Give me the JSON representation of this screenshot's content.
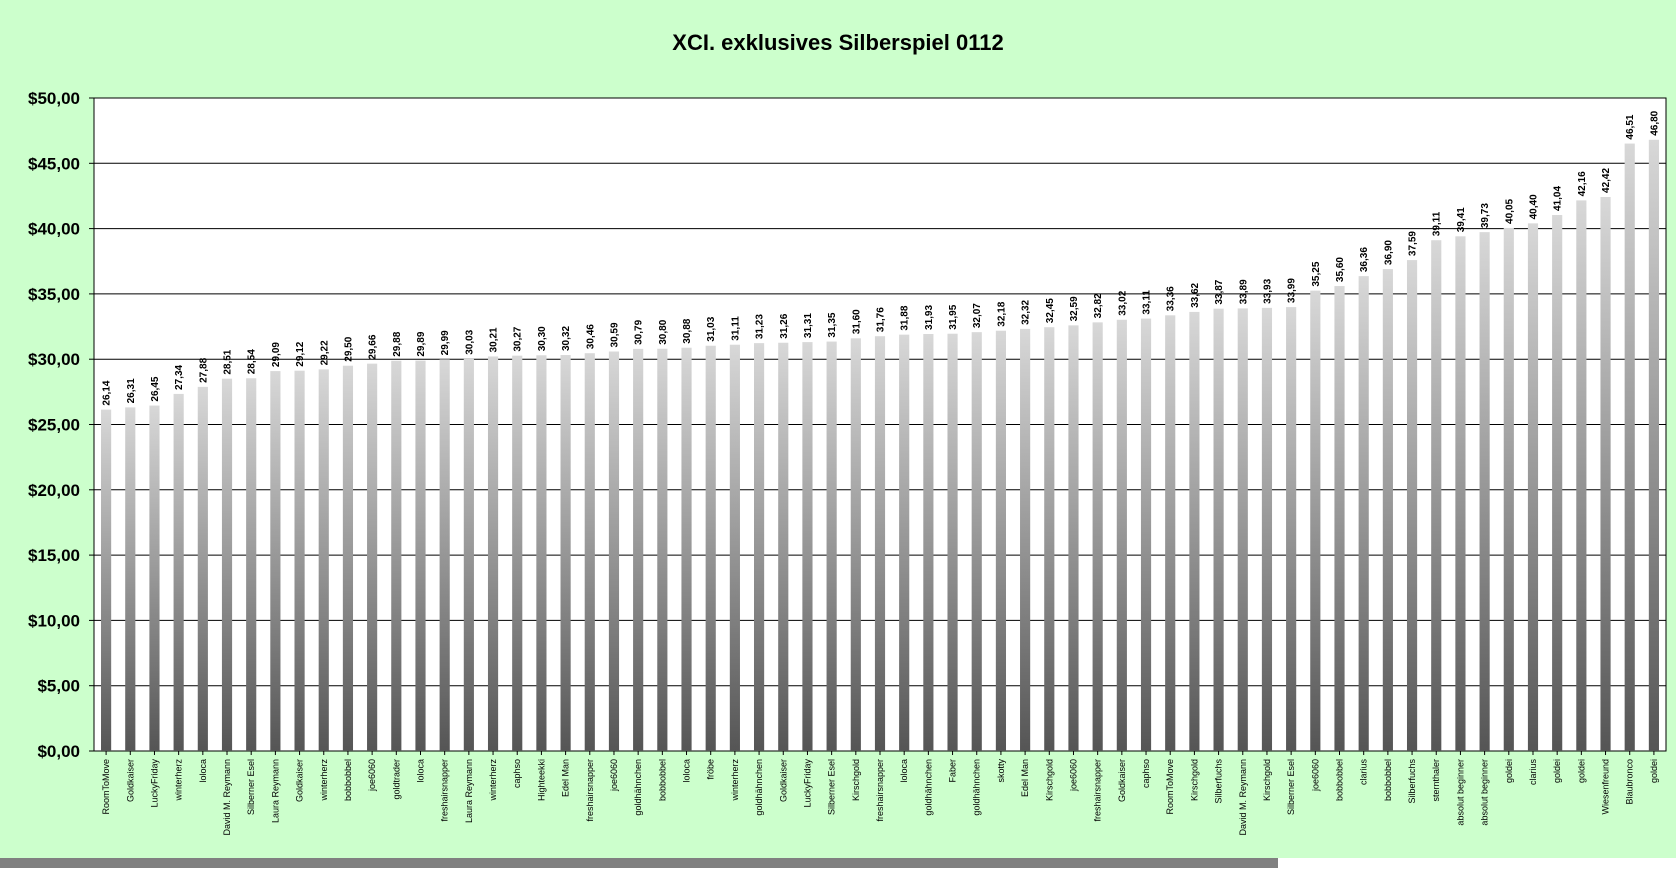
{
  "colors": {
    "background": "#ccffcc",
    "plot_background": "#ffffff",
    "gridline": "#000000",
    "bar_light": "#d8d8d8",
    "bar_dark": "#555555",
    "scrollbar": "#808080"
  },
  "chart_data": {
    "type": "bar",
    "title": "XCI. exklusives Silberspiel 0112",
    "xlabel": "",
    "ylabel": "",
    "ylim": [
      0,
      50
    ],
    "yticks": [
      "$0,00",
      "$5,00",
      "$10,00",
      "$15,00",
      "$20,00",
      "$25,00",
      "$30,00",
      "$35,00",
      "$40,00",
      "$45,00",
      "$50,00"
    ],
    "grid": true,
    "legend": "none",
    "categories": [
      "RoomToMove",
      "Goldkaiser",
      "LuckyFriday",
      "winterherz",
      "loloca",
      "David M. Reymann",
      "Silberner Esel",
      "Laura Reymann",
      "Goldkaiser",
      "winterherz",
      "bobbobbel",
      "joe6060",
      "goldtrader",
      "loloca",
      "freshairsnapper",
      "Laura Reymann",
      "winterherz",
      "caphso",
      "Highteekki",
      "Edel Man",
      "freshairsnapper",
      "joe6060",
      "goldhähnchen",
      "bobbobbel",
      "loloca",
      "fröbe",
      "winterherz",
      "goldhähnchen",
      "Goldkaiser",
      "LuckyFriday",
      "Silberner Esel",
      "Kirschgold",
      "freshairsnapper",
      "loloca",
      "goldhähnchen",
      "Faber",
      "goldhähnchen",
      "skotty",
      "Edel Man",
      "Kirschgold",
      "joe6060",
      "freshairsnapper",
      "Goldkaiser",
      "caphso",
      "RoomToMove",
      "Kirschgold",
      "Silberfuchs",
      "David M. Reymann",
      "Kirschgold",
      "Silberner Esel",
      "joe6060",
      "bobbobbel",
      "clarius",
      "bobbobbel",
      "Silberfuchs",
      "sternthaler",
      "absolut beginner",
      "absolut beginner",
      "goldei",
      "clarius",
      "goldei",
      "goldei",
      "Wiesenfreund",
      "Blaubronco",
      "goldei"
    ],
    "values": [
      26.14,
      26.31,
      26.45,
      27.34,
      27.88,
      28.51,
      28.54,
      29.09,
      29.12,
      29.22,
      29.5,
      29.66,
      29.88,
      29.89,
      29.99,
      30.03,
      30.21,
      30.27,
      30.3,
      30.32,
      30.46,
      30.59,
      30.79,
      30.8,
      30.88,
      31.03,
      31.11,
      31.23,
      31.26,
      31.31,
      31.35,
      31.6,
      31.76,
      31.88,
      31.93,
      31.95,
      32.07,
      32.18,
      32.32,
      32.45,
      32.59,
      32.82,
      33.02,
      33.11,
      33.36,
      33.62,
      33.87,
      33.89,
      33.93,
      33.99,
      35.25,
      35.6,
      36.36,
      36.9,
      37.59,
      39.11,
      39.41,
      39.73,
      40.05,
      40.4,
      41.04,
      42.16,
      42.42,
      46.51,
      46.8
    ],
    "data_labels": [
      "26,14",
      "26,31",
      "26,45",
      "27,34",
      "27,88",
      "28,51",
      "28,54",
      "29,09",
      "29,12",
      "29,22",
      "29,50",
      "29,66",
      "29,88",
      "29,89",
      "29,99",
      "30,03",
      "30,21",
      "30,27",
      "30,30",
      "30,32",
      "30,46",
      "30,59",
      "30,79",
      "30,80",
      "30,88",
      "31,03",
      "31,11",
      "31,23",
      "31,26",
      "31,31",
      "31,35",
      "31,60",
      "31,76",
      "31,88",
      "31,93",
      "31,95",
      "32,07",
      "32,18",
      "32,32",
      "32,45",
      "32,59",
      "32,82",
      "33,02",
      "33,11",
      "33,36",
      "33,62",
      "33,87",
      "33,89",
      "33,93",
      "33,99",
      "35,25",
      "35,60",
      "36,36",
      "36,90",
      "37,59",
      "39,11",
      "39,41",
      "39,73",
      "40,05",
      "40,40",
      "41,04",
      "42,16",
      "42,42",
      "46,51",
      "46,80"
    ]
  }
}
